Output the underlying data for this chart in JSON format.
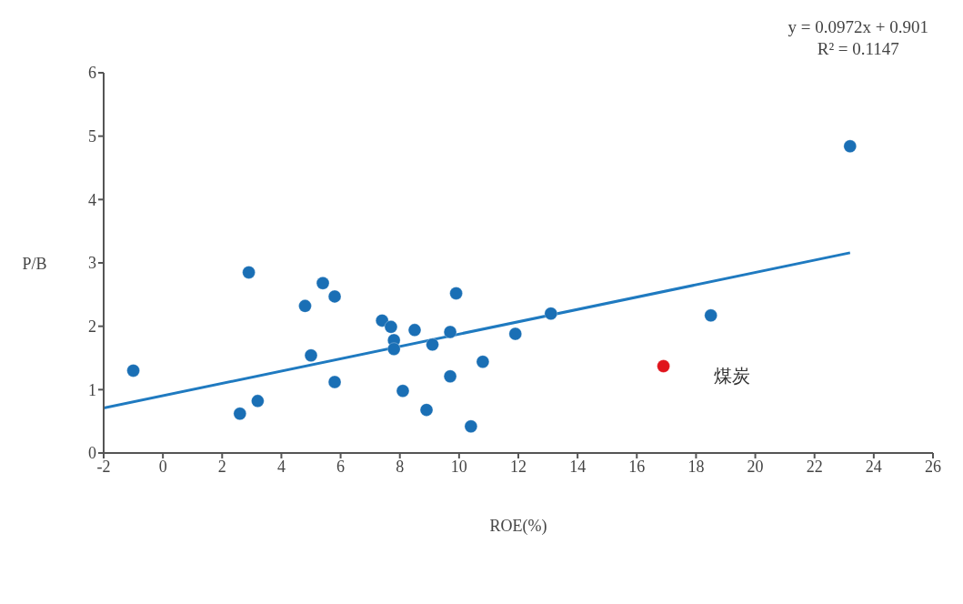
{
  "chart_data": {
    "type": "scatter",
    "xlabel": "ROE(%)",
    "ylabel": "P/B",
    "xlim": [
      -2,
      26
    ],
    "ylim": [
      0,
      6
    ],
    "xticks": [
      -2,
      0,
      2,
      4,
      6,
      8,
      10,
      12,
      14,
      16,
      18,
      20,
      22,
      24,
      26
    ],
    "yticks": [
      0,
      1,
      2,
      3,
      4,
      5,
      6
    ],
    "grid": false,
    "legend": false,
    "marker": "circle",
    "annotations": [
      "y = 0.0972x + 0.901",
      "R² = 0.1147"
    ],
    "series": [
      {
        "color": "#1a6fb5",
        "x": [
          -1.0,
          2.9,
          2.6,
          3.2,
          4.8,
          5.4,
          5.8,
          5.0,
          5.8,
          7.4,
          7.7,
          7.8,
          7.8,
          8.5,
          9.1,
          9.7,
          9.9,
          10.8,
          9.7,
          8.1,
          8.9,
          10.4,
          11.9,
          13.1,
          23.2,
          18.5
        ],
        "values": [
          1.3,
          2.85,
          0.62,
          0.82,
          2.32,
          2.68,
          2.47,
          1.54,
          1.12,
          2.09,
          1.99,
          1.78,
          1.64,
          1.94,
          1.71,
          1.91,
          2.52,
          1.44,
          1.21,
          0.98,
          0.68,
          0.42,
          1.88,
          2.2,
          4.84,
          2.17
        ]
      },
      {
        "name": "煤炭",
        "color": "#e0141c",
        "x": [
          16.9
        ],
        "values": [
          1.37
        ]
      },
      {
        "type": "line",
        "color": "#1f7ac0",
        "marker": "none",
        "x": [
          -2,
          23.2
        ],
        "values": [
          0.71,
          3.16
        ]
      }
    ]
  }
}
